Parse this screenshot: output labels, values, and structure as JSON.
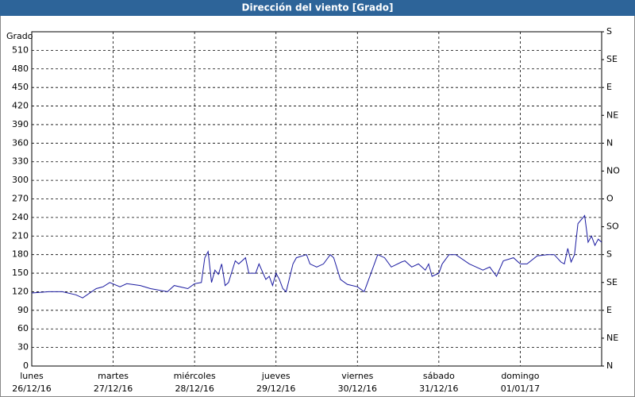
{
  "chart_data": {
    "type": "line",
    "title": "Dirección del viento [Grado]",
    "y_label": "Grado",
    "xlim": [
      0,
      168
    ],
    "xticks": [
      {
        "value": 0,
        "label": "lunes",
        "sublabel": "26/12/16"
      },
      {
        "value": 24,
        "label": "martes",
        "sublabel": "27/12/16"
      },
      {
        "value": 48,
        "label": "miércoles",
        "sublabel": "28/12/16"
      },
      {
        "value": 72,
        "label": "jueves",
        "sublabel": "29/12/16"
      },
      {
        "value": 96,
        "label": "viernes",
        "sublabel": "30/12/16"
      },
      {
        "value": 120,
        "label": "sábado",
        "sublabel": "31/12/16"
      },
      {
        "value": 144,
        "label": "domingo",
        "sublabel": "01/01/17"
      }
    ],
    "ylim": [
      0,
      540
    ],
    "yticks": [
      0,
      30,
      60,
      90,
      120,
      150,
      180,
      210,
      240,
      270,
      300,
      330,
      360,
      390,
      420,
      450,
      480,
      510
    ],
    "y2lim": [
      0,
      540
    ],
    "y2ticks": [
      {
        "value": 0,
        "label": "N"
      },
      {
        "value": 45,
        "label": "NE"
      },
      {
        "value": 90,
        "label": "E"
      },
      {
        "value": 135,
        "label": "SE"
      },
      {
        "value": 180,
        "label": "S"
      },
      {
        "value": 225,
        "label": "SO"
      },
      {
        "value": 270,
        "label": "O"
      },
      {
        "value": 315,
        "label": "NO"
      },
      {
        "value": 360,
        "label": "N"
      },
      {
        "value": 405,
        "label": "NE"
      },
      {
        "value": 450,
        "label": "E"
      },
      {
        "value": 495,
        "label": "SE"
      },
      {
        "value": 540,
        "label": "S"
      }
    ],
    "grid": true,
    "x": [
      0,
      5,
      9,
      13,
      15,
      19,
      21,
      23,
      26,
      28,
      32,
      35,
      40,
      42,
      46,
      48,
      50,
      51,
      52,
      53,
      54,
      55,
      56,
      57,
      58,
      60,
      61,
      63,
      64,
      66,
      67,
      69,
      70,
      71,
      72,
      73,
      74,
      75,
      77,
      78,
      81,
      82,
      84,
      86,
      88,
      89,
      91,
      93,
      96,
      98,
      100,
      102,
      104,
      106,
      109,
      110,
      112,
      114,
      116,
      117,
      118,
      120,
      121,
      123,
      125,
      129,
      131,
      133,
      135,
      137,
      139,
      142,
      144,
      146,
      149,
      152,
      154,
      156,
      157,
      158,
      159,
      160,
      161,
      163,
      164,
      165,
      166,
      167,
      168
    ],
    "series": [
      {
        "name": "Dirección del viento",
        "color": "#1a1aa0",
        "values": [
          118,
          120,
          120,
          115,
          110,
          125,
          128,
          135,
          128,
          133,
          130,
          125,
          120,
          130,
          125,
          133,
          135,
          175,
          185,
          135,
          155,
          148,
          165,
          130,
          135,
          170,
          165,
          175,
          150,
          150,
          165,
          140,
          145,
          130,
          150,
          140,
          125,
          120,
          165,
          175,
          180,
          165,
          160,
          165,
          180,
          175,
          140,
          132,
          128,
          120,
          150,
          180,
          175,
          160,
          168,
          170,
          160,
          165,
          155,
          165,
          145,
          150,
          165,
          180,
          180,
          165,
          160,
          155,
          160,
          145,
          170,
          175,
          165,
          165,
          178,
          180,
          180,
          168,
          165,
          190,
          168,
          180,
          230,
          243,
          200,
          210,
          195,
          205,
          200
        ]
      }
    ]
  }
}
